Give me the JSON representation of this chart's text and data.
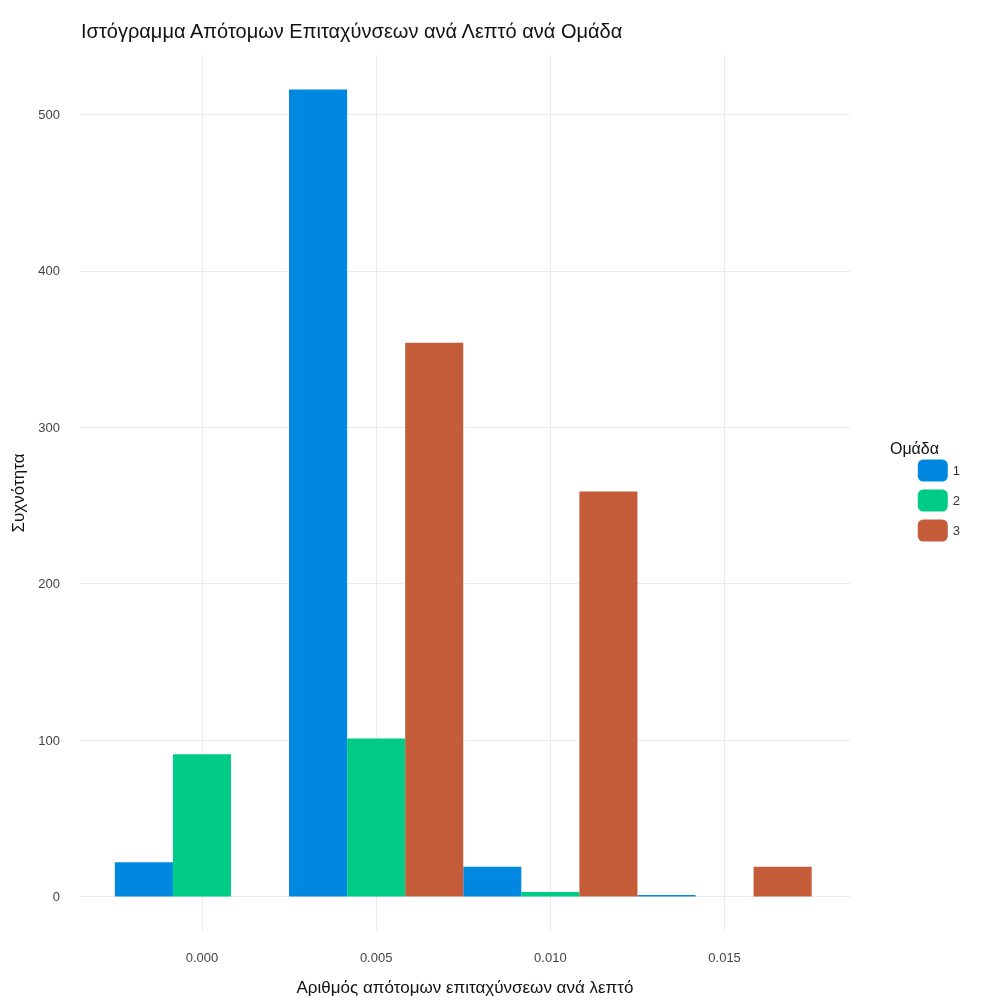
{
  "chart_data": {
    "type": "bar",
    "title": "Ιστόγραμμα Απότομων Επιταχύνσεων ανά Λεπτό ανά Ομάδα",
    "xlabel": "Αριθμός απότομων επιταχύνσεων ανά λεπτό",
    "ylabel": "Συχνότητα",
    "legend_title": "Ομάδα",
    "x": [
      0,
      0.005,
      0.01,
      0.015
    ],
    "series": [
      {
        "name": "1",
        "color": "#0088e0",
        "values": [
          22,
          516,
          19,
          1
        ]
      },
      {
        "name": "2",
        "color": "#00cc88",
        "values": [
          91,
          101,
          3,
          0
        ]
      },
      {
        "name": "3",
        "color": "#c45c3a",
        "values": [
          0,
          354,
          259,
          19
        ]
      }
    ],
    "xlim": [
      -0.0035,
      0.0186
    ],
    "xticks": [
      {
        "value": 0,
        "label": "0.000"
      },
      {
        "value": 0.005,
        "label": "0.005"
      },
      {
        "value": 0.01,
        "label": "0.010"
      },
      {
        "value": 0.015,
        "label": "0.015"
      }
    ],
    "ylim": [
      -22,
      538
    ],
    "yticks": [
      0,
      100,
      200,
      300,
      400,
      500
    ],
    "grid": true,
    "legend": "right"
  }
}
